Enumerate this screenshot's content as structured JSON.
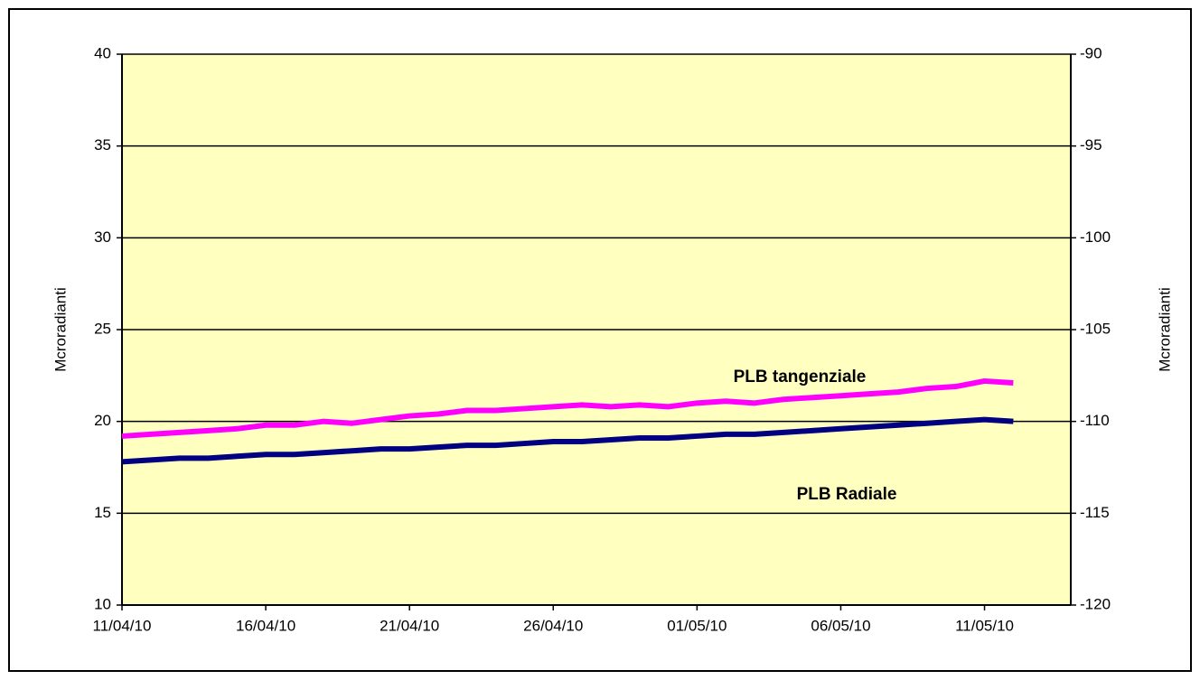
{
  "chart_data": {
    "type": "line",
    "ylabel": "Mcroradianti",
    "y2label": "Mcroradianti",
    "x": [
      "11/04/10",
      "12/04/10",
      "13/04/10",
      "14/04/10",
      "15/04/10",
      "16/04/10",
      "17/04/10",
      "18/04/10",
      "19/04/10",
      "20/04/10",
      "21/04/10",
      "22/04/10",
      "23/04/10",
      "24/04/10",
      "25/04/10",
      "26/04/10",
      "27/04/10",
      "28/04/10",
      "29/04/10",
      "30/04/10",
      "01/05/10",
      "02/05/10",
      "03/05/10",
      "04/05/10",
      "05/05/10",
      "06/05/10",
      "07/05/10",
      "08/05/10",
      "09/05/10",
      "10/05/10",
      "11/05/10",
      "12/05/10"
    ],
    "series": [
      {
        "name": "PLB tangenziale",
        "color": "#ff00ff",
        "values": [
          19.2,
          19.3,
          19.4,
          19.5,
          19.6,
          19.8,
          19.8,
          20.0,
          19.9,
          20.1,
          20.3,
          20.4,
          20.6,
          20.6,
          20.7,
          20.8,
          20.9,
          20.8,
          20.9,
          20.8,
          21.0,
          21.1,
          21.0,
          21.2,
          21.3,
          21.4,
          21.5,
          21.6,
          21.8,
          21.9,
          22.2,
          22.1
        ]
      },
      {
        "name": "PLB Radiale",
        "color": "#000080",
        "values": [
          17.8,
          17.9,
          18.0,
          18.0,
          18.1,
          18.2,
          18.2,
          18.3,
          18.4,
          18.5,
          18.5,
          18.6,
          18.7,
          18.7,
          18.8,
          18.9,
          18.9,
          19.0,
          19.1,
          19.1,
          19.2,
          19.3,
          19.3,
          19.4,
          19.5,
          19.6,
          19.7,
          19.8,
          19.9,
          20.0,
          20.1,
          20.0
        ]
      }
    ],
    "xlim": [
      "11/04/10",
      "14/05/10"
    ],
    "xticks": [
      "11/04/10",
      "16/04/10",
      "21/04/10",
      "26/04/10",
      "01/05/10",
      "06/05/10",
      "11/05/10"
    ],
    "ylim": [
      10,
      40
    ],
    "yticks": [
      10,
      15,
      20,
      25,
      30,
      35,
      40
    ],
    "y2lim": [
      -120,
      -90
    ],
    "y2ticks": [
      -120,
      -115,
      -110,
      -105,
      -100,
      -95,
      -90
    ],
    "grid": true,
    "plot_background": "#ffffc0"
  }
}
